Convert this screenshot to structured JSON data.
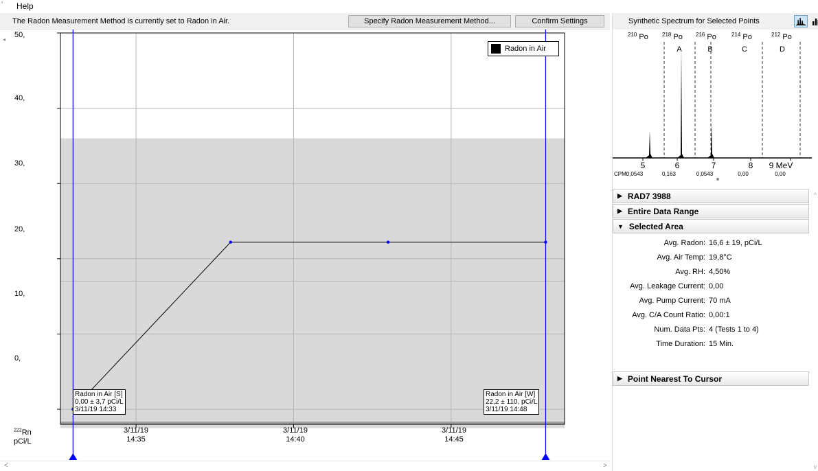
{
  "menu": {
    "edge_glyph": "ʻ",
    "help_label": "Help"
  },
  "toolbar": {
    "status_text": "The Radon Measurement Method is currently set to Radon in Air.",
    "specify_button_label": "Specify Radon Measurement Method...",
    "confirm_button_label": "Confirm Settings"
  },
  "chart_data": {
    "type": "line",
    "title": "",
    "ylabel": "pCi/L",
    "ylabel_sup": "222",
    "ylabel_isotope": "Rn",
    "ylim": [
      -2,
      50
    ],
    "y_ticks": [
      "50,",
      "40,",
      "30,",
      "20,",
      "10,",
      "0,"
    ],
    "y_tick_values": [
      50,
      40,
      30,
      20,
      10,
      0
    ],
    "x_ticks": [
      {
        "date": "3/11/19",
        "time": "14:35",
        "minutes": 2
      },
      {
        "date": "3/11/19",
        "time": "14:40",
        "minutes": 7
      },
      {
        "date": "3/11/19",
        "time": "14:45",
        "minutes": 12
      }
    ],
    "x_range_minutes": [
      -0.4,
      15.6
    ],
    "grid": true,
    "legend": {
      "label": "Radon in Air",
      "placement": "top-right"
    },
    "series": [
      {
        "name": "Radon in Air",
        "color": "#000000",
        "marker_color": "#0000ff",
        "points": [
          {
            "time": "3/11/19 14:33",
            "minutes": 0,
            "value": 0.0
          },
          {
            "time": "3/11/19 14:38",
            "minutes": 5,
            "value": 22.2
          },
          {
            "time": "3/11/19 14:43",
            "minutes": 10,
            "value": 22.2
          },
          {
            "time": "3/11/19 14:48",
            "minutes": 15,
            "value": 22.2
          }
        ]
      }
    ],
    "uncertainty_band": {
      "low": -2.5,
      "high": 36,
      "color": "#d9d9d9"
    },
    "inner_gridline": 17,
    "cursor_lines": {
      "color": "#0000ff"
    },
    "annotations": [
      {
        "line1": "Radon in Air [S]",
        "line2": "0,00 ± 3,7 pCi/L",
        "line3": "3/11/19 14:33"
      },
      {
        "line1": "Radon in Air [W]",
        "line2": "22,2 ± 110, pCi/L",
        "line3": "3/11/19 14:48"
      }
    ]
  },
  "spectrum": {
    "title": "Synthetic Spectrum for Selected Points",
    "isotopes": [
      {
        "mass": "210",
        "symbol": "Po"
      },
      {
        "mass": "218",
        "symbol": "Po"
      },
      {
        "mass": "216",
        "symbol": "Po"
      },
      {
        "mass": "214",
        "symbol": "Po"
      },
      {
        "mass": "212",
        "symbol": "Po"
      }
    ],
    "windows": [
      "A",
      "B",
      "C",
      "D"
    ],
    "energy_ticks": [
      "5",
      "6",
      "7",
      "8",
      "9 MeV"
    ],
    "cpm_label": "CPM:",
    "cpm_values": [
      "0,0543",
      "0,163",
      "0,0543",
      "0,00",
      "0,00"
    ]
  },
  "info_panel": {
    "sections": {
      "device": "RAD7 3988",
      "entire": "Entire Data Range",
      "selected": "Selected Area",
      "nearest": "Point Nearest To Cursor"
    },
    "rows": [
      {
        "label": "Avg. Radon:",
        "value": "16,6 ± 19, pCi/L"
      },
      {
        "label": "Avg. Air Temp:",
        "value": "19,8°C"
      },
      {
        "label": "Avg. RH:",
        "value": "4,50%"
      },
      {
        "label": "Avg. Leakage Current:",
        "value": "0,00"
      },
      {
        "label": "Avg. Pump Current:",
        "value": "70 mA"
      },
      {
        "label": "Avg. C/A Count Ratio:",
        "value": "0,00:1"
      },
      {
        "label": "Num. Data Pts:",
        "value": "4 (Tests 1 to 4)"
      },
      {
        "label": "Time Duration:",
        "value": "15 Min."
      }
    ]
  }
}
